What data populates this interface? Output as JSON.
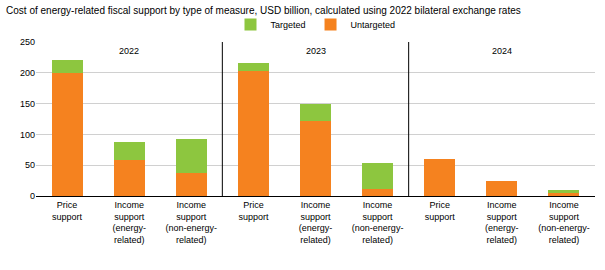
{
  "chart_data": {
    "type": "bar",
    "title": "Cost of energy-related fiscal support by type of measure, USD billion, calculated using 2022 bilateral exchange rates",
    "stacked": true,
    "legend": "top",
    "grid": true,
    "ylim": [
      0,
      250
    ],
    "yticks": [
      0,
      50,
      100,
      150,
      200,
      250
    ],
    "groups": [
      "2022",
      "2023",
      "2024"
    ],
    "categories": [
      "Price support",
      "Income support (energy-related)",
      "Income support (non-energy-related)"
    ],
    "series": [
      {
        "name": "Targeted",
        "color": "#8DC63F",
        "values": [
          [
            20,
            30,
            55
          ],
          [
            13,
            28,
            42
          ],
          [
            0,
            0,
            5
          ]
        ]
      },
      {
        "name": "Untargeted",
        "color": "#F5821F",
        "values": [
          [
            200,
            58,
            38
          ],
          [
            203,
            122,
            12
          ],
          [
            60,
            25,
            5
          ]
        ]
      }
    ]
  }
}
